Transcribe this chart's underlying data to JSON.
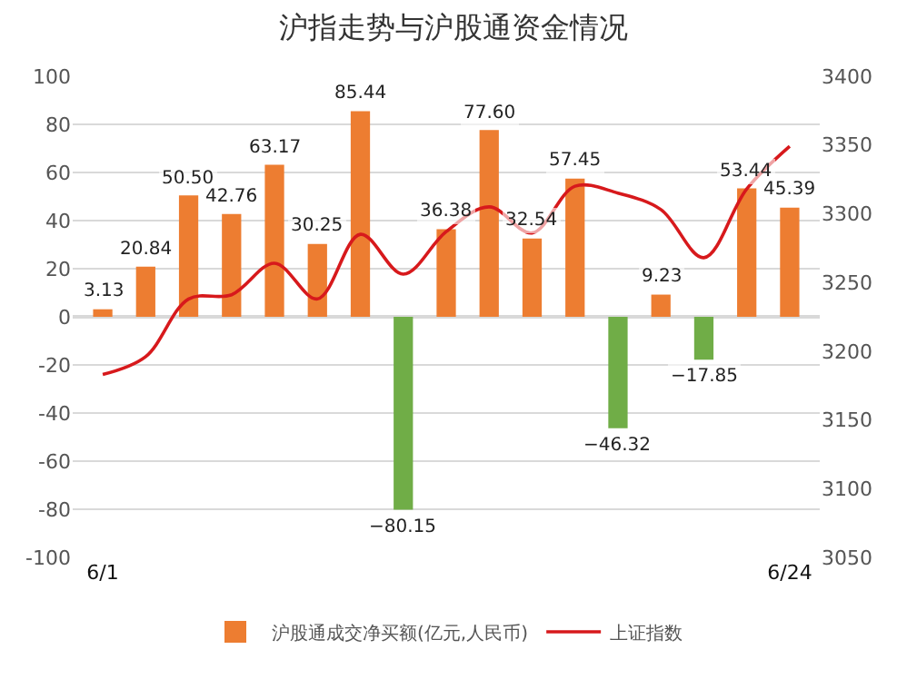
{
  "chart_data": {
    "type": "bar",
    "title": "沪指走势与沪股通资金情况",
    "categories": [
      "6/1",
      null,
      null,
      null,
      null,
      null,
      null,
      null,
      null,
      null,
      null,
      null,
      null,
      null,
      null,
      null,
      "6/24"
    ],
    "series": [
      {
        "name": "沪股通成交净买额(亿元,人民币)",
        "color": "#ed7d31",
        "colors": [
          "#ed7d31",
          "#ed7d31",
          "#ed7d31",
          "#ed7d31",
          "#ed7d31",
          "#ed7d31",
          "#ed7d31",
          "#70ad47",
          "#ed7d31",
          "#ed7d31",
          "#ed7d31",
          "#ed7d31",
          "#70ad47",
          "#ed7d31",
          "#70ad47",
          "#ed7d31",
          "#ed7d31"
        ],
        "values": [
          3.13,
          20.84,
          50.5,
          42.76,
          63.17,
          30.25,
          85.44,
          -80.15,
          36.38,
          77.6,
          32.54,
          57.45,
          -46.32,
          9.23,
          -17.85,
          53.44,
          45.39
        ],
        "value_labels": [
          "3.13",
          "20.84",
          "50.50",
          "42.76",
          "63.17",
          "30.25",
          "85.44",
          "−80.15",
          "36.38",
          "77.60",
          "32.54",
          "57.45",
          "−46.32",
          "9.23",
          "−17.85",
          "53.44",
          "45.39"
        ]
      },
      {
        "name": "上证指数",
        "type": "line",
        "axis": "y2",
        "color": "#d7191c",
        "values": [
          3183,
          3196,
          3238,
          3241,
          3264,
          3238,
          3285,
          3256,
          3287,
          3305,
          3286,
          3320,
          3315,
          3303,
          3268,
          3318,
          3349
        ]
      }
    ],
    "ylim": [
      -100,
      100
    ],
    "yticks": [
      -100,
      -80,
      -60,
      -40,
      -20,
      0,
      20,
      40,
      60,
      80,
      100
    ],
    "y2lim": [
      3050,
      3400
    ],
    "y2ticks": [
      3050,
      3100,
      3150,
      3200,
      3250,
      3300,
      3350,
      3400
    ],
    "grid": "y",
    "legend": "bottom",
    "marker": "none",
    "line_style": "solid"
  }
}
